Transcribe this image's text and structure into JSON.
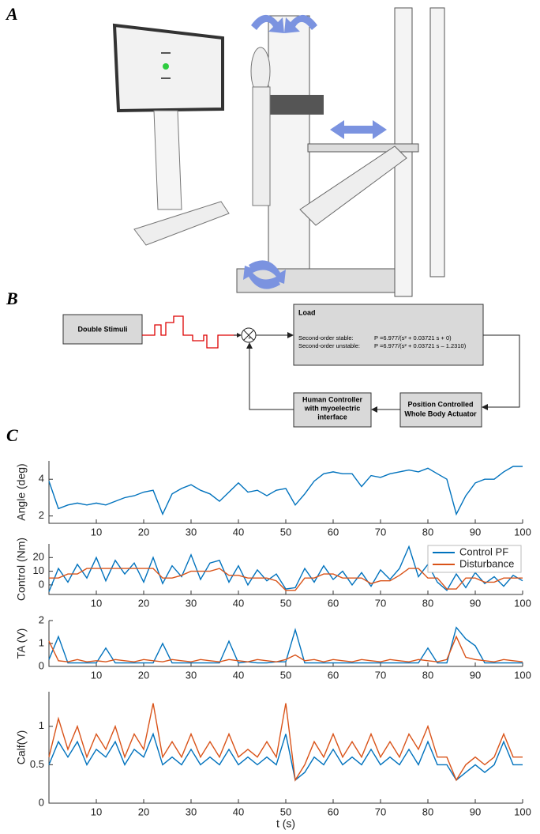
{
  "panels": {
    "a": {
      "label": "A"
    },
    "b": {
      "label": "B",
      "stimulus": "Double Stimuli",
      "load_title": "Load",
      "stable_label": "Second-order stable:",
      "stable_eq": "P =6.977/(s² + 0.03721 s + 0)",
      "unstable_label": "Second-order unstable:",
      "unstable_eq": "P =6.977/(s² + 0.03721 s – 1.2310)",
      "actuator": [
        "Position Controlled",
        "Whole Body Actuator"
      ],
      "controller": [
        "Human Controller",
        "with myoelectric",
        "interface"
      ],
      "junction_sign": "+"
    },
    "c": {
      "label": "C"
    }
  },
  "chart_data": [
    {
      "type": "line",
      "y_label": "Angle (deg)",
      "xlim": [
        0,
        100
      ],
      "xticks": [
        10,
        20,
        30,
        40,
        50,
        60,
        70,
        80,
        90,
        100
      ],
      "ylim": [
        1.6,
        5.0
      ],
      "yticks": [
        2,
        4
      ],
      "x": [
        0,
        2,
        4,
        6,
        8,
        10,
        12,
        14,
        16,
        18,
        20,
        22,
        24,
        26,
        28,
        30,
        32,
        34,
        36,
        38,
        40,
        42,
        44,
        46,
        48,
        50,
        52,
        54,
        56,
        58,
        60,
        62,
        64,
        66,
        68,
        70,
        72,
        74,
        76,
        78,
        80,
        82,
        84,
        86,
        88,
        90,
        92,
        94,
        96,
        98,
        100
      ],
      "series": [
        {
          "color": "#0072BD",
          "values": [
            3.9,
            2.4,
            2.6,
            2.7,
            2.6,
            2.7,
            2.6,
            2.8,
            3.0,
            3.1,
            3.3,
            3.4,
            2.1,
            3.2,
            3.5,
            3.7,
            3.4,
            3.2,
            2.8,
            3.3,
            3.8,
            3.3,
            3.4,
            3.1,
            3.4,
            3.5,
            2.6,
            3.2,
            3.9,
            4.3,
            4.4,
            4.3,
            4.3,
            3.6,
            4.2,
            4.1,
            4.3,
            4.4,
            4.5,
            4.4,
            4.6,
            4.3,
            4.0,
            2.1,
            3.1,
            3.8,
            4.0,
            4.0,
            4.4,
            4.7,
            4.7
          ]
        }
      ]
    },
    {
      "type": "line",
      "y_label": "Control (Nm)",
      "legend": "upper right",
      "xlim": [
        0,
        100
      ],
      "xticks": [
        10,
        20,
        30,
        40,
        50,
        60,
        70,
        80,
        90,
        100
      ],
      "ylim": [
        -7,
        30
      ],
      "yticks": [
        0,
        10,
        20
      ],
      "x": [
        0,
        2,
        4,
        6,
        8,
        10,
        12,
        14,
        16,
        18,
        20,
        22,
        24,
        26,
        28,
        30,
        32,
        34,
        36,
        38,
        40,
        42,
        44,
        46,
        48,
        50,
        52,
        54,
        56,
        58,
        60,
        62,
        64,
        66,
        68,
        70,
        72,
        74,
        76,
        78,
        80,
        82,
        84,
        86,
        88,
        90,
        92,
        94,
        96,
        98,
        100
      ],
      "series": [
        {
          "name": "Control PF",
          "color": "#0072BD",
          "values": [
            -5,
            12,
            2,
            15,
            5,
            20,
            3,
            18,
            8,
            16,
            2,
            20,
            1,
            14,
            6,
            22,
            4,
            16,
            18,
            2,
            14,
            0,
            11,
            3,
            8,
            -3,
            -2,
            12,
            2,
            14,
            4,
            10,
            0,
            9,
            -1,
            11,
            4,
            12,
            28,
            6,
            15,
            2,
            -4,
            8,
            -2,
            9,
            1,
            6,
            -1,
            7,
            3
          ]
        },
        {
          "name": "Disturbance",
          "color": "#D95319",
          "values": [
            5,
            5,
            8,
            8,
            12,
            12,
            12,
            12,
            12,
            12,
            12,
            12,
            5,
            5,
            7,
            10,
            10,
            10,
            12,
            7,
            7,
            5,
            5,
            5,
            3,
            -4,
            -4,
            5,
            5,
            8,
            8,
            5,
            5,
            5,
            1,
            3,
            3,
            7,
            12,
            12,
            5,
            5,
            -3,
            -3,
            5,
            5,
            2,
            2,
            5,
            5,
            5
          ]
        }
      ]
    },
    {
      "type": "line",
      "y_label": "TA (V)",
      "xlim": [
        0,
        100
      ],
      "xticks": [
        10,
        20,
        30,
        40,
        50,
        60,
        70,
        80,
        90,
        100
      ],
      "ylim": [
        0,
        2
      ],
      "yticks": [
        0,
        1,
        2
      ],
      "x": [
        0,
        2,
        4,
        6,
        8,
        10,
        12,
        14,
        16,
        18,
        20,
        22,
        24,
        26,
        28,
        30,
        32,
        34,
        36,
        38,
        40,
        42,
        44,
        46,
        48,
        50,
        52,
        54,
        56,
        58,
        60,
        62,
        64,
        66,
        68,
        70,
        72,
        74,
        76,
        78,
        80,
        82,
        84,
        86,
        88,
        90,
        92,
        94,
        96,
        98,
        100
      ],
      "series": [
        {
          "color": "#0072BD",
          "values": [
            0.3,
            1.3,
            0.15,
            0.15,
            0.15,
            0.15,
            0.8,
            0.15,
            0.15,
            0.15,
            0.15,
            0.15,
            1.0,
            0.15,
            0.15,
            0.15,
            0.15,
            0.15,
            0.15,
            1.1,
            0.15,
            0.2,
            0.15,
            0.15,
            0.2,
            0.2,
            1.6,
            0.15,
            0.15,
            0.15,
            0.15,
            0.15,
            0.15,
            0.15,
            0.15,
            0.15,
            0.15,
            0.15,
            0.15,
            0.15,
            0.8,
            0.15,
            0.15,
            1.7,
            1.2,
            0.9,
            0.15,
            0.15,
            0.15,
            0.15,
            0.15
          ]
        },
        {
          "color": "#D95319",
          "values": [
            1.1,
            0.25,
            0.2,
            0.3,
            0.2,
            0.25,
            0.2,
            0.3,
            0.25,
            0.2,
            0.3,
            0.25,
            0.2,
            0.3,
            0.25,
            0.2,
            0.3,
            0.25,
            0.2,
            0.3,
            0.25,
            0.2,
            0.3,
            0.25,
            0.2,
            0.3,
            0.5,
            0.25,
            0.3,
            0.2,
            0.3,
            0.25,
            0.2,
            0.3,
            0.25,
            0.2,
            0.3,
            0.25,
            0.2,
            0.3,
            0.25,
            0.2,
            0.3,
            1.3,
            0.4,
            0.3,
            0.25,
            0.2,
            0.3,
            0.25,
            0.2
          ]
        }
      ]
    },
    {
      "type": "line",
      "y_label": "Calf(V)",
      "x_label": "t (s)",
      "xlim": [
        0,
        100
      ],
      "xticks": [
        10,
        20,
        30,
        40,
        50,
        60,
        70,
        80,
        90,
        100
      ],
      "ylim": [
        0,
        1.45
      ],
      "yticks": [
        0,
        0.5,
        1
      ],
      "x": [
        0,
        2,
        4,
        6,
        8,
        10,
        12,
        14,
        16,
        18,
        20,
        22,
        24,
        26,
        28,
        30,
        32,
        34,
        36,
        38,
        40,
        42,
        44,
        46,
        48,
        50,
        52,
        54,
        56,
        58,
        60,
        62,
        64,
        66,
        68,
        70,
        72,
        74,
        76,
        78,
        80,
        82,
        84,
        86,
        88,
        90,
        92,
        94,
        96,
        98,
        100
      ],
      "series": [
        {
          "color": "#0072BD",
          "values": [
            0.5,
            0.8,
            0.6,
            0.8,
            0.5,
            0.7,
            0.6,
            0.8,
            0.5,
            0.7,
            0.6,
            0.9,
            0.5,
            0.6,
            0.5,
            0.7,
            0.5,
            0.6,
            0.5,
            0.7,
            0.5,
            0.6,
            0.5,
            0.6,
            0.5,
            0.9,
            0.3,
            0.4,
            0.6,
            0.5,
            0.7,
            0.5,
            0.6,
            0.5,
            0.7,
            0.5,
            0.6,
            0.5,
            0.7,
            0.5,
            0.8,
            0.5,
            0.5,
            0.3,
            0.4,
            0.5,
            0.4,
            0.5,
            0.8,
            0.5,
            0.5
          ]
        },
        {
          "color": "#D95319",
          "values": [
            0.6,
            1.1,
            0.7,
            1.0,
            0.6,
            0.9,
            0.7,
            1.0,
            0.6,
            0.9,
            0.7,
            1.3,
            0.6,
            0.8,
            0.6,
            0.9,
            0.6,
            0.8,
            0.6,
            0.9,
            0.6,
            0.7,
            0.6,
            0.8,
            0.6,
            1.3,
            0.3,
            0.5,
            0.8,
            0.6,
            0.9,
            0.6,
            0.8,
            0.6,
            0.9,
            0.6,
            0.8,
            0.6,
            0.9,
            0.7,
            1.0,
            0.6,
            0.6,
            0.3,
            0.5,
            0.6,
            0.5,
            0.6,
            0.9,
            0.6,
            0.6
          ]
        }
      ]
    }
  ]
}
